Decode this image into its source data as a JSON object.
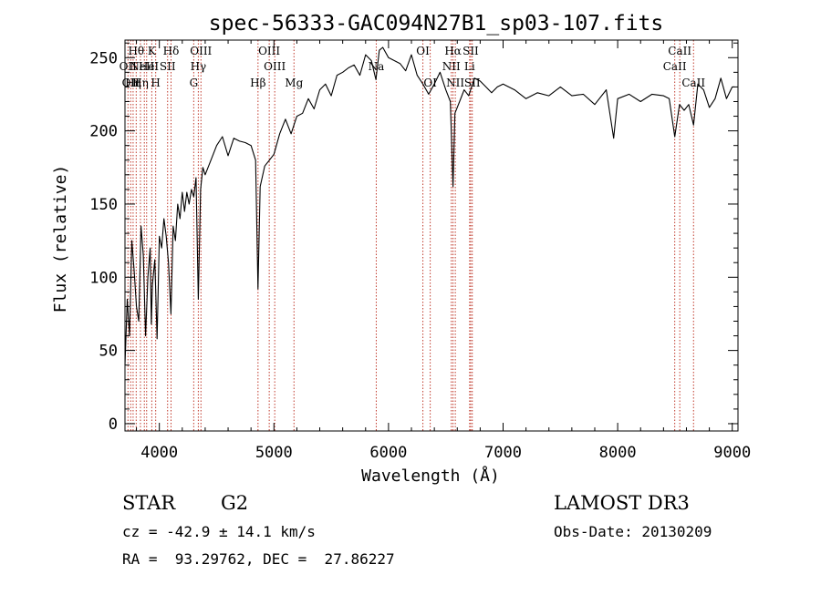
{
  "chart_data": {
    "type": "line",
    "title": "spec-56333-GAC094N27B1_sp03-107.fits",
    "xlabel": "Wavelength (Å)",
    "ylabel": "Flux (relative)",
    "xlim": [
      3700,
      9050
    ],
    "ylim": [
      -5,
      262
    ],
    "xticks": [
      {
        "value": 4000,
        "label": "4000"
      },
      {
        "value": 5000,
        "label": "5000"
      },
      {
        "value": 6000,
        "label": "6000"
      },
      {
        "value": 7000,
        "label": "7000"
      },
      {
        "value": 8000,
        "label": "8000"
      },
      {
        "value": 9000,
        "label": "9000"
      }
    ],
    "yticks": [
      {
        "value": 0,
        "label": "0"
      },
      {
        "value": 50,
        "label": "50"
      },
      {
        "value": 100,
        "label": "100"
      },
      {
        "value": 150,
        "label": "150"
      },
      {
        "value": 200,
        "label": "200"
      },
      {
        "value": 250,
        "label": "250"
      }
    ],
    "x_minor_step": 200,
    "y_minor_step": 10,
    "series": [
      {
        "name": "spectrum",
        "x": [
          3700,
          3720,
          3740,
          3760,
          3780,
          3800,
          3820,
          3840,
          3860,
          3880,
          3900,
          3920,
          3930,
          3940,
          3960,
          3980,
          4000,
          4020,
          4040,
          4060,
          4080,
          4101,
          4120,
          4140,
          4160,
          4180,
          4200,
          4220,
          4240,
          4260,
          4280,
          4300,
          4320,
          4340,
          4360,
          4380,
          4400,
          4450,
          4500,
          4550,
          4600,
          4650,
          4700,
          4750,
          4800,
          4840,
          4861,
          4880,
          4920,
          4960,
          5000,
          5050,
          5100,
          5150,
          5200,
          5250,
          5300,
          5350,
          5400,
          5450,
          5500,
          5550,
          5600,
          5650,
          5700,
          5750,
          5800,
          5850,
          5890,
          5920,
          5950,
          6000,
          6050,
          6100,
          6150,
          6200,
          6250,
          6300,
          6350,
          6400,
          6450,
          6500,
          6540,
          6563,
          6580,
          6620,
          6660,
          6700,
          6750,
          6800,
          6850,
          6900,
          6950,
          7000,
          7100,
          7200,
          7300,
          7400,
          7500,
          7600,
          7700,
          7800,
          7900,
          7965,
          8000,
          8100,
          8200,
          8300,
          8400,
          8450,
          8498,
          8540,
          8580,
          8620,
          8662,
          8700,
          8750,
          8800,
          8850,
          8900,
          8950,
          9000,
          9020
        ],
        "y": [
          40,
          85,
          60,
          125,
          105,
          80,
          70,
          135,
          115,
          60,
          100,
          120,
          68,
          95,
          112,
          58,
          128,
          120,
          140,
          128,
          110,
          75,
          135,
          125,
          150,
          140,
          158,
          145,
          158,
          150,
          160,
          155,
          168,
          85,
          160,
          175,
          170,
          180,
          190,
          196,
          183,
          195,
          193,
          192,
          190,
          180,
          92,
          162,
          176,
          180,
          184,
          198,
          208,
          198,
          210,
          212,
          222,
          215,
          228,
          232,
          224,
          238,
          240,
          243,
          245,
          238,
          252,
          248,
          235,
          255,
          257,
          250,
          248,
          246,
          241,
          252,
          238,
          232,
          225,
          232,
          240,
          228,
          220,
          162,
          212,
          220,
          228,
          224,
          236,
          234,
          230,
          226,
          230,
          232,
          228,
          222,
          226,
          224,
          230,
          224,
          225,
          218,
          228,
          195,
          222,
          225,
          220,
          225,
          224,
          222,
          196,
          218,
          214,
          218,
          204,
          232,
          228,
          216,
          222,
          236,
          222,
          230,
          230
        ]
      }
    ],
    "line_markers": [
      {
        "wavelength": 3726,
        "label": "OII",
        "row": 1
      },
      {
        "wavelength": 3750,
        "label": "OII",
        "row": 2
      },
      {
        "wavelength": 3771,
        "label": "Hη",
        "row": 2
      },
      {
        "wavelength": 3798,
        "label": "Hθ",
        "row": 0
      },
      {
        "wavelength": 3835,
        "label": "Hη",
        "row": 2
      },
      {
        "wavelength": 3869,
        "label": "NeIII",
        "row": 1
      },
      {
        "wavelength": 3889,
        "label": "He",
        "row": 1
      },
      {
        "wavelength": 3934,
        "label": "K",
        "row": 0
      },
      {
        "wavelength": 3968,
        "label": "H",
        "row": 2
      },
      {
        "wavelength": 4072,
        "label": "SII",
        "row": 1
      },
      {
        "wavelength": 4102,
        "label": "Hδ",
        "row": 0
      },
      {
        "wavelength": 4300,
        "label": "G",
        "row": 2
      },
      {
        "wavelength": 4340,
        "label": "Hγ",
        "row": 1
      },
      {
        "wavelength": 4363,
        "label": "OIII",
        "row": 0
      },
      {
        "wavelength": 4861,
        "label": "Hβ",
        "row": 2
      },
      {
        "wavelength": 4959,
        "label": "OIII",
        "row": 0
      },
      {
        "wavelength": 5007,
        "label": "OIII",
        "row": 1
      },
      {
        "wavelength": 5175,
        "label": "Mg",
        "row": 2
      },
      {
        "wavelength": 5893,
        "label": "Na",
        "row": 1
      },
      {
        "wavelength": 6300,
        "label": "OI",
        "row": 0
      },
      {
        "wavelength": 6364,
        "label": "OI",
        "row": 2
      },
      {
        "wavelength": 6548,
        "label": "NII",
        "row": 1
      },
      {
        "wavelength": 6563,
        "label": "Hα",
        "row": 0
      },
      {
        "wavelength": 6583,
        "label": "NII",
        "row": 2
      },
      {
        "wavelength": 6708,
        "label": "Li",
        "row": 1
      },
      {
        "wavelength": 6717,
        "label": "SII",
        "row": 0
      },
      {
        "wavelength": 6731,
        "label": "SII",
        "row": 2
      },
      {
        "wavelength": 8498,
        "label": "CaII",
        "row": 1
      },
      {
        "wavelength": 8542,
        "label": "CaII",
        "row": 0
      },
      {
        "wavelength": 8662,
        "label": "CaII",
        "row": 2
      }
    ],
    "colors": {
      "spectrum": "#000000",
      "marker_lines": "#c0392b",
      "axes": "#000000"
    }
  },
  "info": {
    "object_class": "STAR",
    "subclass": "G2",
    "redshift_line": "cz = -42.9 ± 14.1 km/s",
    "coords_line": "RA =  93.29762, DEC =  27.86227",
    "survey": "LAMOST DR3",
    "obs_date_line": "Obs-Date: 20130209"
  }
}
